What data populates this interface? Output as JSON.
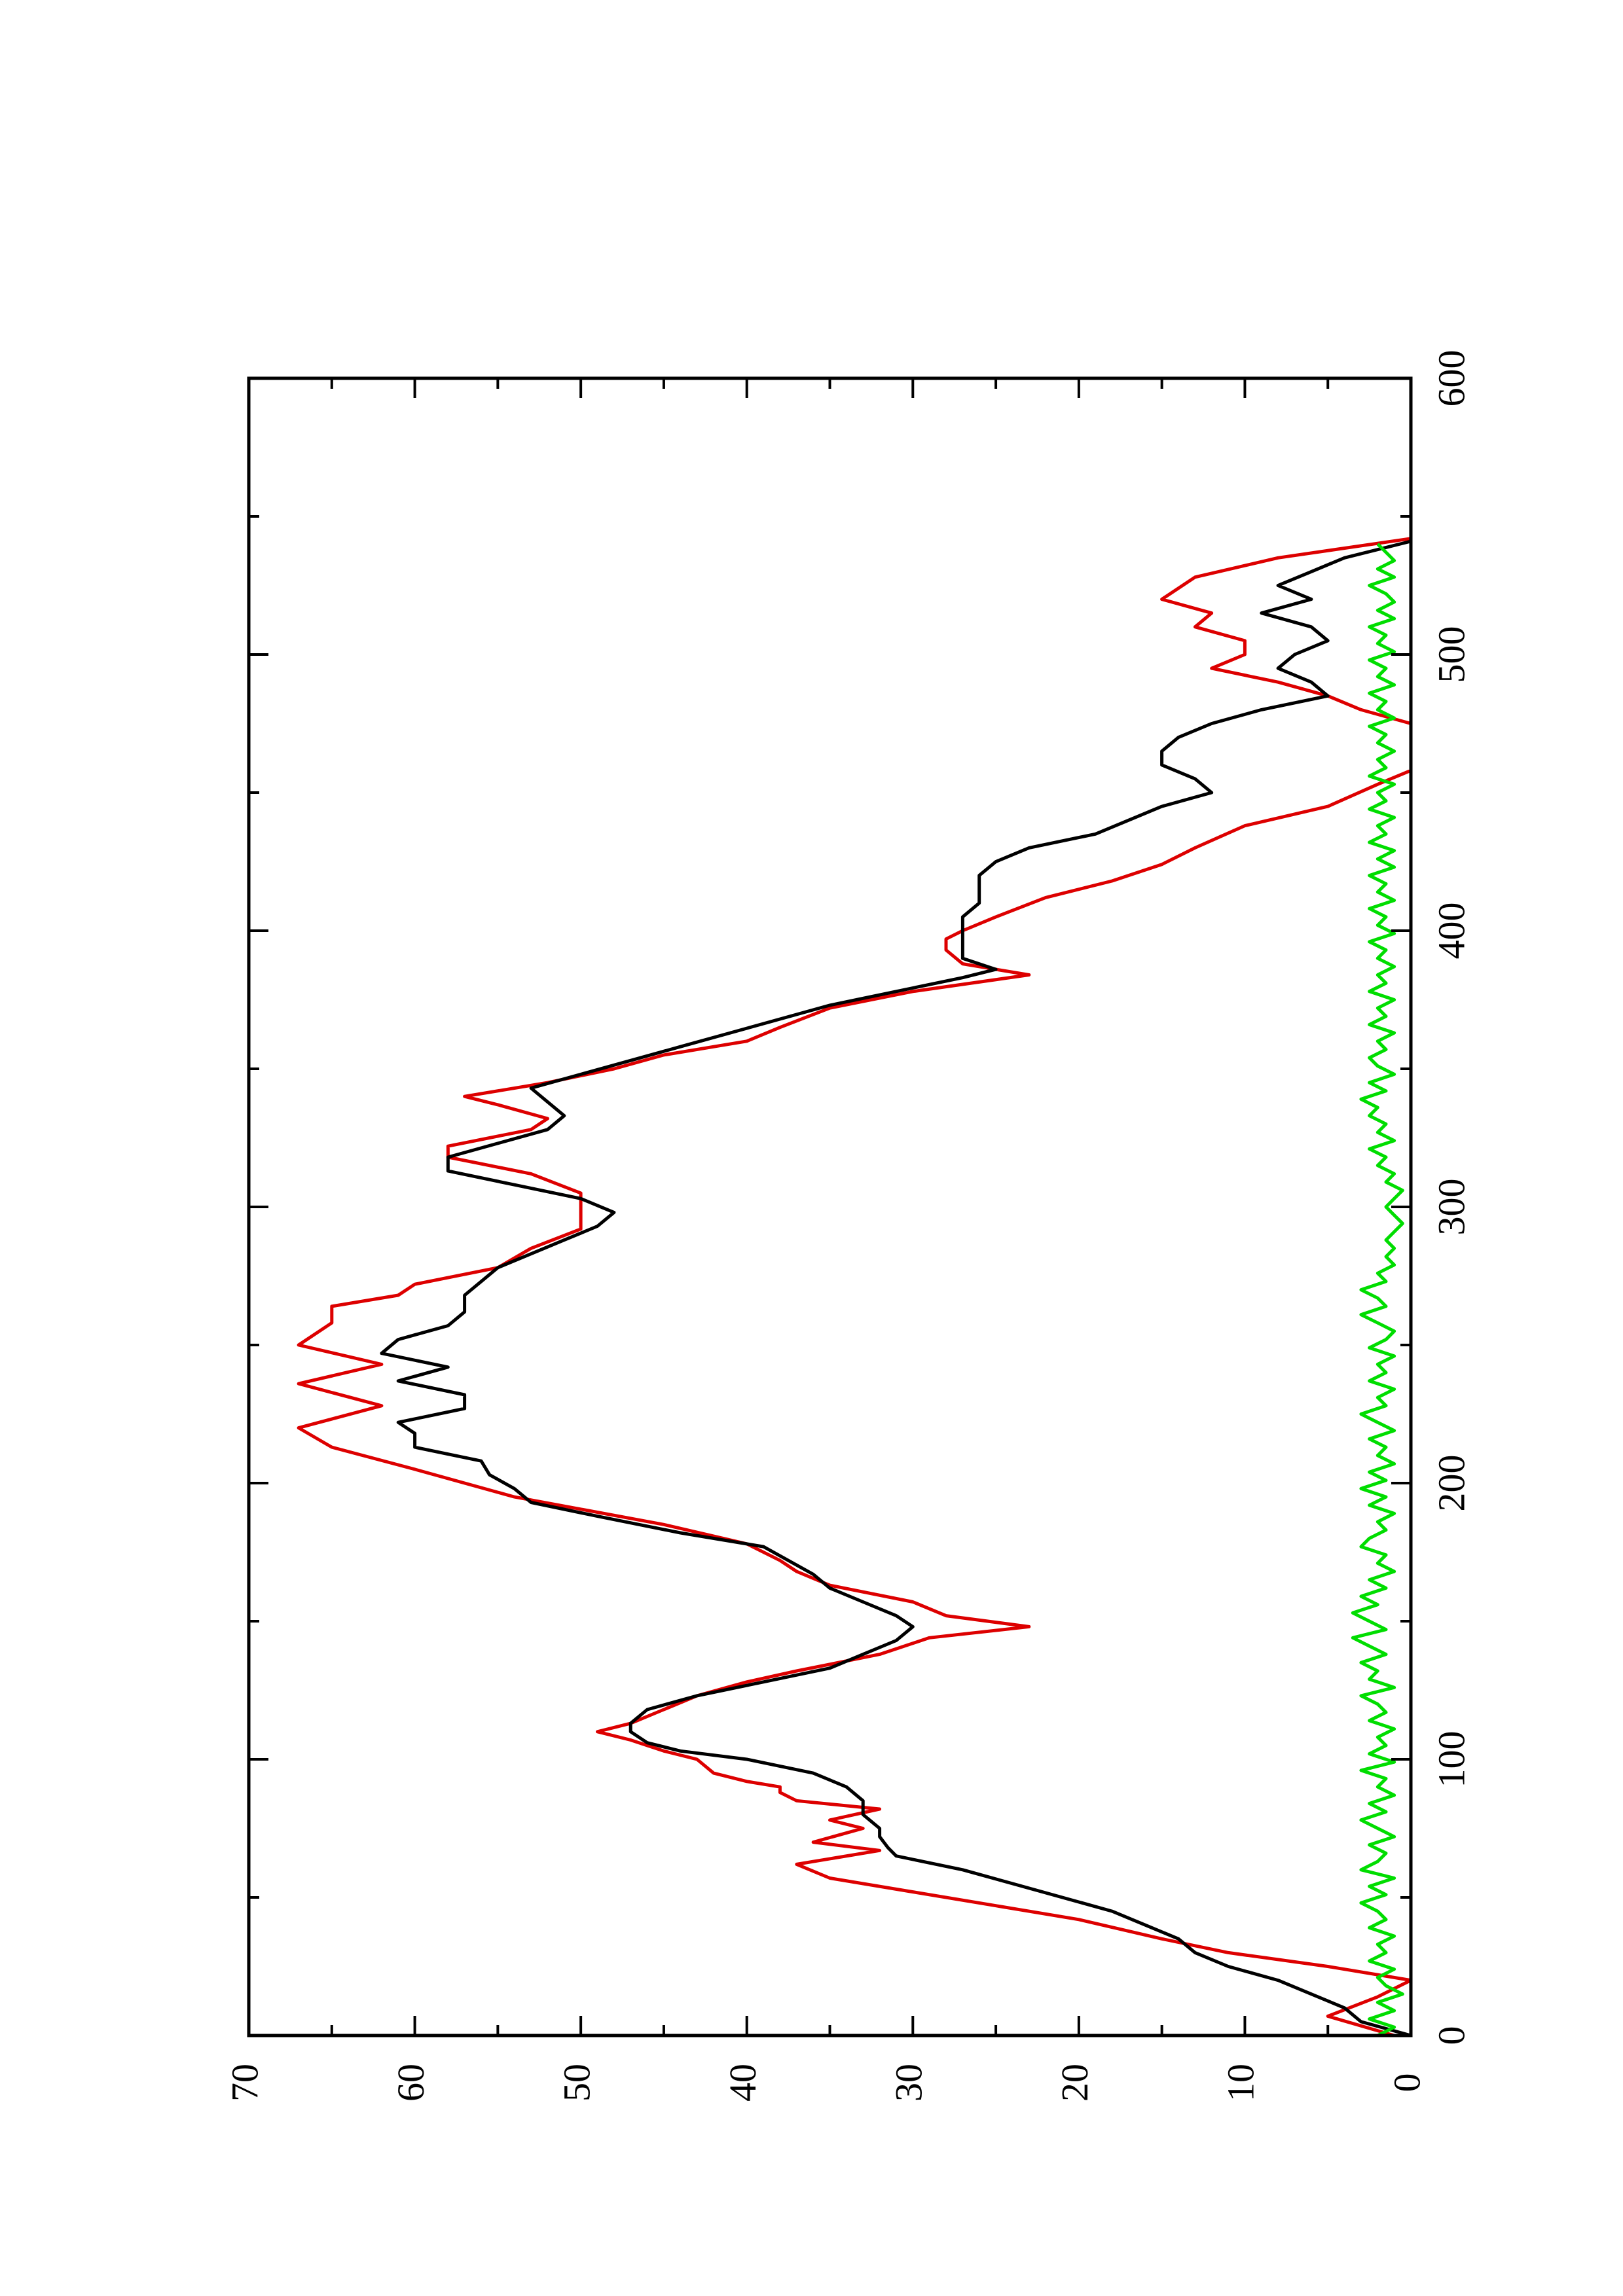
{
  "chart_data": {
    "type": "line",
    "orientation": "rotated-90-ccw",
    "title": "",
    "xlabel": "",
    "ylabel": "",
    "xlim": [
      0,
      600
    ],
    "ylim": [
      0,
      70
    ],
    "xticks": [
      0,
      100,
      200,
      300,
      400,
      500,
      600
    ],
    "yticks": [
      0,
      10,
      20,
      30,
      40,
      50,
      60,
      70
    ],
    "grid": false,
    "legend": "none",
    "series": [
      {
        "color": "#dd0000",
        "style": "step",
        "x": [
          0,
          7,
          14,
          20,
          25,
          30,
          35,
          42,
          47,
          52,
          57,
          62,
          67,
          70,
          75,
          78,
          82,
          85,
          88,
          90,
          92,
          95,
          100,
          103,
          107,
          110,
          113,
          118,
          123,
          128,
          132,
          138,
          144,
          148,
          152,
          157,
          163,
          168,
          172,
          178,
          185,
          195,
          200,
          205,
          213,
          220,
          228,
          236,
          243,
          250,
          258,
          264,
          268,
          272,
          278,
          285,
          292,
          300,
          305,
          312,
          318,
          322,
          328,
          332,
          337,
          340,
          345,
          350,
          355,
          360,
          365,
          372,
          378,
          384,
          388,
          393,
          397,
          400,
          405,
          412,
          418,
          424,
          430,
          438,
          445,
          453,
          458,
          465,
          470,
          475,
          480,
          485,
          490,
          495,
          500,
          505,
          510,
          515,
          520,
          528,
          535,
          542
        ],
        "y": [
          1,
          5,
          2,
          0,
          5,
          11,
          15,
          20,
          25,
          30,
          35,
          37,
          32,
          36,
          33,
          35,
          32,
          37,
          38,
          38,
          40,
          42,
          43,
          45,
          47,
          49,
          47,
          45,
          43,
          40,
          37,
          32,
          29,
          23,
          28,
          30,
          35,
          37,
          38,
          40,
          45,
          54,
          57,
          60,
          65,
          67,
          62,
          67,
          62,
          67,
          65,
          65,
          61,
          60,
          55,
          53,
          50,
          50,
          50,
          53,
          58,
          58,
          53,
          52,
          55,
          57,
          52,
          48,
          45,
          40,
          38,
          35,
          30,
          23,
          27,
          28,
          28,
          27,
          25,
          22,
          18,
          15,
          13,
          10,
          5,
          2,
          0,
          0,
          0,
          0,
          3,
          5,
          8,
          12,
          10,
          10,
          13,
          12,
          15,
          13,
          8,
          0
        ]
      },
      {
        "color": "#000000",
        "style": "smooth",
        "x": [
          0,
          5,
          10,
          15,
          20,
          25,
          30,
          35,
          40,
          45,
          50,
          55,
          60,
          65,
          68,
          72,
          75,
          80,
          85,
          90,
          95,
          100,
          103,
          106,
          110,
          113,
          118,
          123,
          128,
          133,
          138,
          143,
          148,
          152,
          157,
          162,
          167,
          172,
          177,
          182,
          188,
          193,
          198,
          203,
          208,
          213,
          218,
          222,
          227,
          232,
          237,
          242,
          247,
          252,
          257,
          262,
          268,
          273,
          278,
          283,
          288,
          293,
          298,
          303,
          308,
          313,
          318,
          323,
          328,
          333,
          338,
          343,
          348,
          353,
          358,
          363,
          368,
          373,
          378,
          383,
          386,
          390,
          395,
          400,
          405,
          410,
          415,
          420,
          425,
          430,
          435,
          440,
          445,
          450,
          455,
          460,
          465,
          470,
          475,
          480,
          485,
          490,
          495,
          500,
          505,
          510,
          515,
          520,
          525,
          530,
          535,
          541
        ],
        "y": [
          0,
          3,
          4,
          6,
          8,
          11,
          13,
          14,
          16,
          18,
          21,
          24,
          27,
          31,
          31.5,
          32,
          32,
          33,
          33,
          34,
          36,
          40,
          44,
          46,
          47,
          47,
          46,
          43,
          39,
          35,
          33,
          31,
          30,
          31,
          33,
          35,
          36,
          37.5,
          39,
          44,
          49,
          53,
          54,
          55.5,
          56,
          60,
          60,
          61,
          57,
          57,
          61,
          58,
          62,
          61,
          58,
          57,
          57,
          56,
          55,
          53,
          51,
          49,
          48,
          50,
          54,
          58,
          58,
          55,
          52,
          51,
          52,
          53,
          50,
          47,
          44,
          41,
          38,
          35,
          31,
          27,
          25,
          27,
          27,
          27,
          27,
          26,
          26,
          26,
          25,
          23,
          19,
          17,
          15,
          12,
          13,
          15,
          15,
          14,
          12,
          9,
          5,
          6,
          8,
          7,
          5,
          6,
          9,
          6,
          8,
          6,
          4,
          0
        ]
      },
      {
        "color": "#00dd00",
        "style": "noise",
        "x": [
          0,
          3,
          6,
          9,
          12,
          15,
          18,
          21,
          24,
          27,
          30,
          33,
          36,
          39,
          42,
          45,
          48,
          51,
          54,
          57,
          60,
          63,
          66,
          69,
          72,
          75,
          78,
          81,
          84,
          87,
          90,
          93,
          96,
          99,
          102,
          105,
          108,
          111,
          114,
          117,
          120,
          123,
          126,
          129,
          132,
          135,
          138,
          141,
          144,
          147,
          150,
          153,
          156,
          159,
          162,
          165,
          168,
          171,
          174,
          177,
          180,
          183,
          186,
          189,
          192,
          195,
          198,
          201,
          204,
          207,
          210,
          213,
          216,
          219,
          222,
          225,
          228,
          231,
          234,
          237,
          240,
          243,
          246,
          249,
          252,
          255,
          258,
          261,
          264,
          267,
          270,
          273,
          276,
          279,
          282,
          285,
          288,
          291,
          294,
          297,
          300,
          303,
          306,
          309,
          312,
          315,
          318,
          321,
          324,
          327,
          330,
          333,
          336,
          339,
          342,
          345,
          348,
          351,
          354,
          357,
          360,
          363,
          366,
          369,
          372,
          375,
          378,
          381,
          384,
          387,
          390,
          393,
          396,
          399,
          402,
          405,
          408,
          411,
          414,
          417,
          420,
          423,
          426,
          429,
          432,
          435,
          438,
          441,
          444,
          447,
          450,
          453,
          456,
          459,
          462,
          465,
          468,
          471,
          474,
          477,
          480,
          483,
          486,
          489,
          492,
          495,
          498,
          501,
          504,
          507,
          510,
          513,
          516,
          519,
          522,
          525,
          528,
          531,
          534,
          537,
          540
        ],
        "y": [
          2,
          1,
          2.5,
          1,
          2,
          0.5,
          1.5,
          2,
          1,
          2.5,
          1.5,
          2,
          1,
          2.5,
          1.5,
          2,
          3,
          1.5,
          2.5,
          1,
          3,
          2,
          1.5,
          2.5,
          1,
          2,
          3,
          1.5,
          2.5,
          1,
          2,
          1.5,
          3,
          1,
          2.5,
          1.5,
          2,
          1,
          2.5,
          1.5,
          2,
          3,
          1,
          2.5,
          2,
          3,
          1.5,
          2.5,
          3.5,
          1.5,
          2.5,
          3.5,
          2,
          3,
          1.5,
          2.5,
          1,
          2,
          1.5,
          3,
          2.5,
          1.5,
          2,
          1,
          2.5,
          1.5,
          3,
          1.5,
          2.5,
          1,
          2,
          1.5,
          2.5,
          1,
          2,
          3,
          1.5,
          2,
          1,
          2.5,
          1.5,
          2,
          1,
          2.5,
          1.5,
          1,
          2,
          3,
          1.5,
          2,
          3,
          1.5,
          2,
          1,
          1.5,
          1,
          1.5,
          1,
          0.5,
          1,
          1.5,
          1,
          0.5,
          1.5,
          1,
          2,
          1.5,
          2.5,
          1,
          2,
          1.5,
          2.5,
          2,
          3,
          1.5,
          2.5,
          1,
          2,
          2.5,
          1.5,
          2,
          1,
          2.5,
          1.5,
          2,
          1,
          2.5,
          1.5,
          2,
          1,
          2,
          1.5,
          2.5,
          1,
          2,
          1.5,
          2.5,
          1,
          2,
          1.5,
          2.5,
          1,
          2,
          1,
          2.5,
          1.5,
          2,
          1,
          2.5,
          1.5,
          2,
          1,
          2.5,
          1.5,
          2,
          1,
          2,
          1.5,
          2.5,
          1,
          2,
          1.5,
          2.5,
          1,
          2,
          1.5,
          2.5,
          1,
          2,
          1.5,
          2.5,
          1,
          2,
          1,
          1.5,
          2.5,
          1,
          2,
          1,
          1.5,
          2
        ]
      }
    ]
  }
}
